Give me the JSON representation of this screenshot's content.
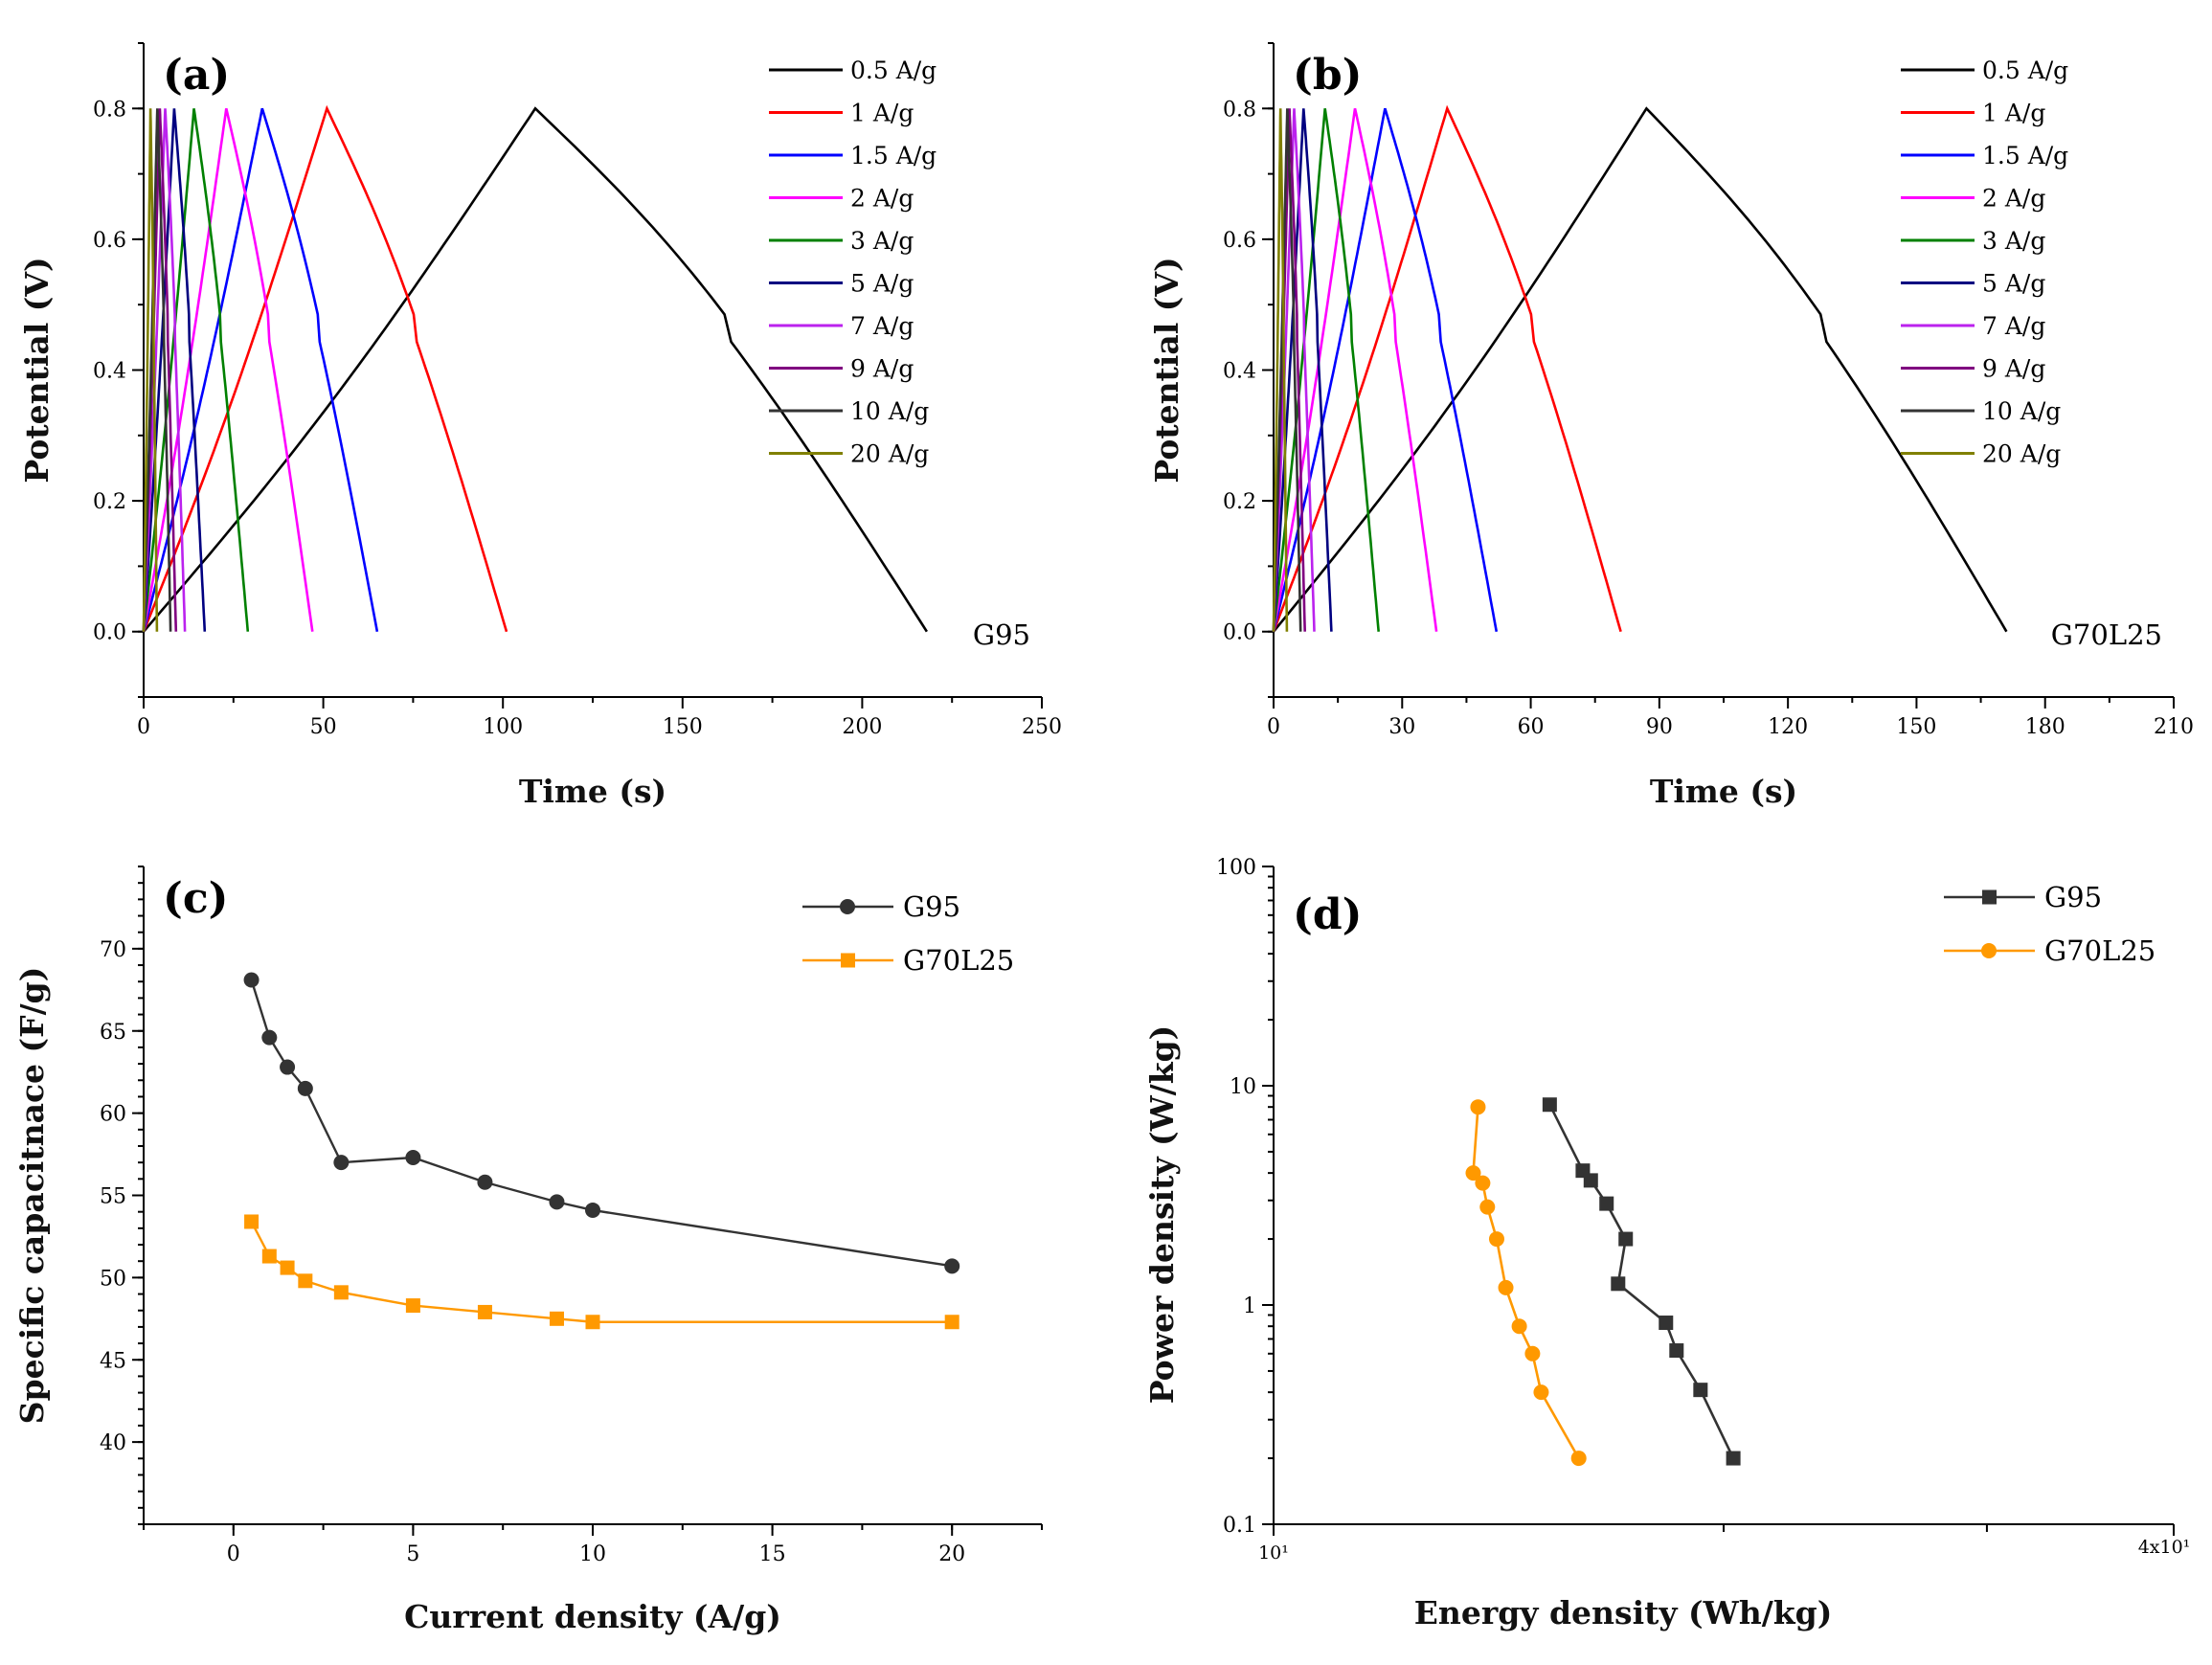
{
  "chart_data": [
    {
      "type": "line",
      "panel_label": "(a)",
      "sample_label": "G95",
      "xlabel": "Time (s)",
      "ylabel": "Potential (V)",
      "xlim": [
        0,
        250
      ],
      "ylim": [
        -0.1,
        0.9
      ],
      "x_ticks": [
        0,
        50,
        100,
        150,
        200,
        250
      ],
      "y_ticks": [
        0.0,
        0.2,
        0.4,
        0.6,
        0.8
      ],
      "y_tick_labels": [
        "0.0",
        "0.2",
        "0.4",
        "0.6",
        "0.8"
      ],
      "legend_position": "top-right",
      "series": [
        {
          "name": "0.5 A/g",
          "color": "#000000",
          "t_peak": 109,
          "t_end": 218,
          "v_peak": 0.8
        },
        {
          "name": "1 A/g",
          "color": "#ff0000",
          "t_peak": 51,
          "t_end": 101,
          "v_peak": 0.8
        },
        {
          "name": "1.5 A/g",
          "color": "#0000ff",
          "t_peak": 33,
          "t_end": 65,
          "v_peak": 0.8
        },
        {
          "name": "2 A/g",
          "color": "#ff00ff",
          "t_peak": 23,
          "t_end": 47,
          "v_peak": 0.8
        },
        {
          "name": "3 A/g",
          "color": "#008000",
          "t_peak": 14,
          "t_end": 29,
          "v_peak": 0.8
        },
        {
          "name": "5 A/g",
          "color": "#000080",
          "t_peak": 8.5,
          "t_end": 17,
          "v_peak": 0.8
        },
        {
          "name": "7 A/g",
          "color": "#bb22ee",
          "t_peak": 6,
          "t_end": 11.5,
          "v_peak": 0.8
        },
        {
          "name": "9 A/g",
          "color": "#800080",
          "t_peak": 4.5,
          "t_end": 9,
          "v_peak": 0.8
        },
        {
          "name": "10 A/g",
          "color": "#333333",
          "t_peak": 3.8,
          "t_end": 7.5,
          "v_peak": 0.8
        },
        {
          "name": "20 A/g",
          "color": "#808000",
          "t_peak": 1.9,
          "t_end": 3.7,
          "v_peak": 0.8
        }
      ]
    },
    {
      "type": "line",
      "panel_label": "(b)",
      "sample_label": "G70L25",
      "xlabel": "Time (s)",
      "ylabel": "Potential (V)",
      "xlim": [
        0,
        210
      ],
      "ylim": [
        -0.1,
        0.9
      ],
      "x_ticks": [
        0,
        30,
        60,
        90,
        120,
        150,
        180,
        210
      ],
      "y_ticks": [
        0.0,
        0.2,
        0.4,
        0.6,
        0.8
      ],
      "y_tick_labels": [
        "0.0",
        "0.2",
        "0.4",
        "0.6",
        "0.8"
      ],
      "legend_position": "top-right",
      "series": [
        {
          "name": "0.5 A/g",
          "color": "#000000",
          "t_peak": 87,
          "t_end": 171,
          "v_peak": 0.8
        },
        {
          "name": "1 A/g",
          "color": "#ff0000",
          "t_peak": 40.5,
          "t_end": 81,
          "v_peak": 0.8
        },
        {
          "name": "1.5 A/g",
          "color": "#0000ff",
          "t_peak": 26,
          "t_end": 52,
          "v_peak": 0.8
        },
        {
          "name": "2 A/g",
          "color": "#ff00ff",
          "t_peak": 19,
          "t_end": 38,
          "v_peak": 0.8
        },
        {
          "name": "3 A/g",
          "color": "#008000",
          "t_peak": 12,
          "t_end": 24.5,
          "v_peak": 0.8
        },
        {
          "name": "5 A/g",
          "color": "#000080",
          "t_peak": 7,
          "t_end": 13.5,
          "v_peak": 0.8
        },
        {
          "name": "7 A/g",
          "color": "#bb22ee",
          "t_peak": 4.8,
          "t_end": 9.5,
          "v_peak": 0.8
        },
        {
          "name": "9 A/g",
          "color": "#800080",
          "t_peak": 3.7,
          "t_end": 7.3,
          "v_peak": 0.8
        },
        {
          "name": "10 A/g",
          "color": "#333333",
          "t_peak": 3.2,
          "t_end": 6.3,
          "v_peak": 0.8
        },
        {
          "name": "20 A/g",
          "color": "#808000",
          "t_peak": 1.6,
          "t_end": 3.1,
          "v_peak": 0.8
        }
      ]
    },
    {
      "type": "line",
      "panel_label": "(c)",
      "xlabel": "Current density (A/g)",
      "ylabel": "Specific capacitnace (F/g)",
      "xlim": [
        -2.5,
        22.5
      ],
      "ylim": [
        35,
        75
      ],
      "x_ticks": [
        0,
        5,
        10,
        15,
        20
      ],
      "y_ticks": [
        40,
        45,
        50,
        55,
        60,
        65,
        70
      ],
      "legend_position": "top-right",
      "series": [
        {
          "name": "G95",
          "color": "#333333",
          "marker": "circle",
          "x": [
            0.5,
            1,
            1.5,
            2,
            3,
            5,
            7,
            9,
            10,
            20
          ],
          "y": [
            68.1,
            64.6,
            62.8,
            61.5,
            57.0,
            57.3,
            55.8,
            54.6,
            54.1,
            50.7
          ]
        },
        {
          "name": "G70L25",
          "color": "#ff9900",
          "marker": "square",
          "x": [
            0.5,
            1,
            1.5,
            2,
            3,
            5,
            7,
            9,
            10,
            20
          ],
          "y": [
            53.4,
            51.3,
            50.6,
            49.8,
            49.1,
            48.3,
            47.9,
            47.5,
            47.3,
            47.3
          ]
        }
      ]
    },
    {
      "type": "scatter",
      "panel_label": "(d)",
      "xlabel": "Energy density (Wh/kg)",
      "ylabel": "Power density (W/kg)",
      "xscale": "log",
      "yscale": "log",
      "xlim": [
        10,
        40
      ],
      "ylim": [
        0.1,
        100
      ],
      "x_tick_labels": [
        "10¹",
        "4x10¹"
      ],
      "y_ticks": [
        0.1,
        1,
        10,
        100
      ],
      "y_tick_labels": [
        "0.1",
        "1",
        "10",
        "100"
      ],
      "legend_position": "top-right",
      "series": [
        {
          "name": "G95",
          "color": "#333333",
          "marker": "square",
          "x": [
            15.3,
            16.1,
            16.3,
            16.7,
            17.2,
            17.0,
            18.3,
            18.6,
            19.3,
            20.3
          ],
          "y": [
            8.2,
            4.1,
            3.7,
            2.9,
            2.0,
            1.25,
            0.83,
            0.62,
            0.41,
            0.2
          ]
        },
        {
          "name": "G70L25",
          "color": "#ff9900",
          "marker": "circle",
          "x": [
            13.7,
            13.6,
            13.8,
            13.9,
            14.1,
            14.3,
            14.6,
            14.9,
            15.1,
            16.0
          ],
          "y": [
            8.0,
            4.0,
            3.6,
            2.8,
            2.0,
            1.2,
            0.8,
            0.6,
            0.4,
            0.2
          ]
        }
      ]
    }
  ]
}
